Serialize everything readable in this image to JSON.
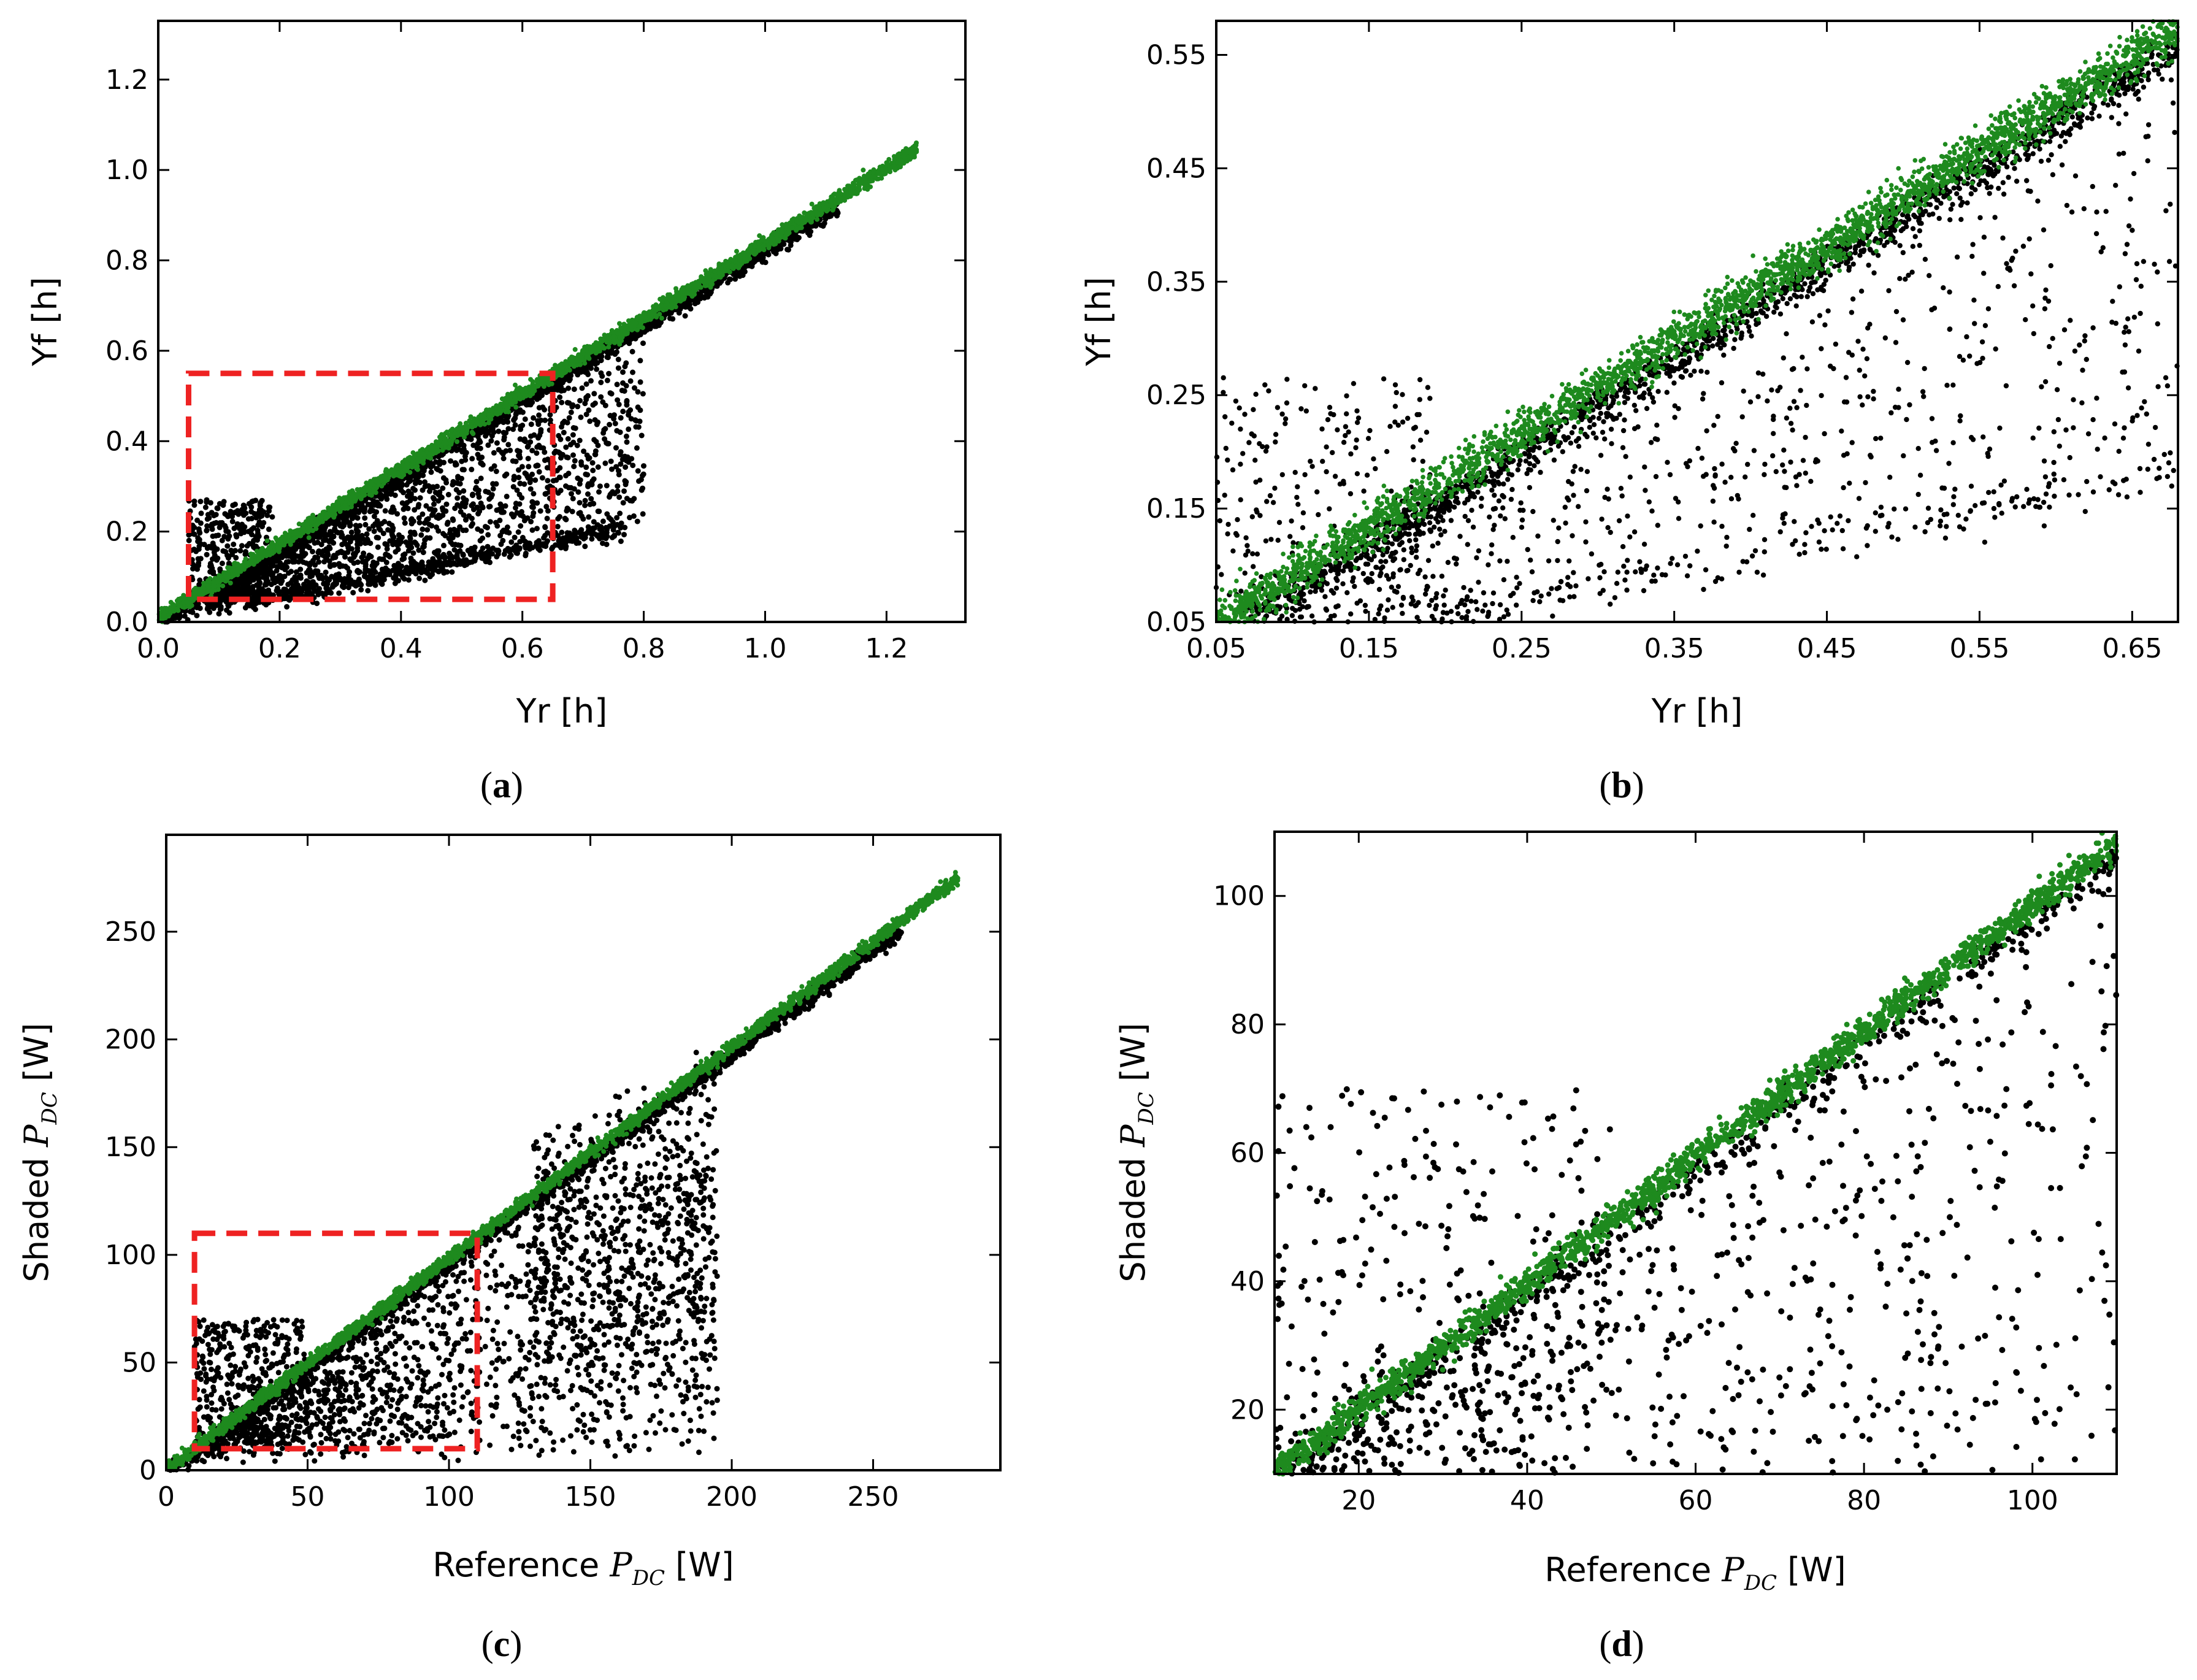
{
  "colors": {
    "shaded": "#000000",
    "reference": "#1e8a1e",
    "zoom_box": "#ee2222"
  },
  "chart_data": [
    {
      "id": "a",
      "panel_label": "a",
      "type": "scatter",
      "xlabel": "Yr [h]",
      "ylabel": "Yf [h]",
      "xlim": [
        0.0,
        1.33
      ],
      "ylim": [
        0.0,
        1.33
      ],
      "xticks": [
        0.0,
        0.2,
        0.4,
        0.6,
        0.8,
        1.0,
        1.2
      ],
      "yticks": [
        0.0,
        0.2,
        0.4,
        0.6,
        0.8,
        1.0,
        1.2
      ],
      "xtick_labels": [
        "0.0",
        "0.2",
        "0.4",
        "0.6",
        "0.8",
        "1.0",
        "1.2"
      ],
      "ytick_labels": [
        "0.0",
        "0.2",
        "0.4",
        "0.6",
        "0.8",
        "1.0",
        "1.2"
      ],
      "zoom_box": {
        "x0": 0.05,
        "x1": 0.65,
        "y0": 0.05,
        "y1": 0.55
      },
      "series": [
        {
          "name": "shaded",
          "color": "#000000",
          "description_points": "dense cloud below diagonal, upper band to ~1.2"
        },
        {
          "name": "reference",
          "color": "#1e8a1e",
          "slope": 0.83,
          "x_range": [
            0.0,
            1.25
          ]
        }
      ]
    },
    {
      "id": "b",
      "panel_label": "b",
      "type": "scatter",
      "xlabel": "Yr [h]",
      "ylabel": "Yf [h]",
      "xlim": [
        0.05,
        0.68
      ],
      "ylim": [
        0.05,
        0.58
      ],
      "xticks": [
        0.05,
        0.15,
        0.25,
        0.35,
        0.45,
        0.55,
        0.65
      ],
      "yticks": [
        0.05,
        0.15,
        0.25,
        0.35,
        0.45,
        0.55
      ],
      "xtick_labels": [
        "0.05",
        "0.15",
        "0.25",
        "0.35",
        "0.45",
        "0.55",
        "0.65"
      ],
      "ytick_labels": [
        "0.05",
        "0.15",
        "0.25",
        "0.35",
        "0.45",
        "0.55"
      ],
      "series": [
        {
          "name": "shaded",
          "color": "#000000"
        },
        {
          "name": "reference",
          "color": "#1e8a1e",
          "slope": 0.83
        }
      ]
    },
    {
      "id": "c",
      "panel_label": "c",
      "type": "scatter",
      "xlabel_prefix": "Reference ",
      "ylabel_prefix": "Shaded ",
      "label_symbol": "P",
      "label_subscript": "DC",
      "label_unit": " [W]",
      "xlim": [
        0,
        295
      ],
      "ylim": [
        0,
        295
      ],
      "xticks": [
        0,
        50,
        100,
        150,
        200,
        250
      ],
      "yticks": [
        0,
        50,
        100,
        150,
        200,
        250
      ],
      "xtick_labels": [
        "0",
        "50",
        "100",
        "150",
        "200",
        "250"
      ],
      "ytick_labels": [
        "0",
        "50",
        "100",
        "150",
        "200",
        "250"
      ],
      "zoom_box": {
        "x0": 10,
        "x1": 110,
        "y0": 10,
        "y1": 110
      },
      "series": [
        {
          "name": "shaded",
          "color": "#000000"
        },
        {
          "name": "reference",
          "color": "#1e8a1e",
          "slope": 0.97,
          "x_range": [
            0,
            280
          ]
        }
      ]
    },
    {
      "id": "d",
      "panel_label": "d",
      "type": "scatter",
      "xlabel_prefix": "Reference ",
      "ylabel_prefix": "Shaded ",
      "label_symbol": "P",
      "label_subscript": "DC",
      "label_unit": " [W]",
      "xlim": [
        10,
        110
      ],
      "ylim": [
        10,
        110
      ],
      "xticks": [
        20,
        40,
        60,
        80,
        100
      ],
      "yticks": [
        20,
        40,
        60,
        80,
        100
      ],
      "xtick_labels": [
        "20",
        "40",
        "60",
        "80",
        "100"
      ],
      "ytick_labels": [
        "20",
        "40",
        "60",
        "80",
        "100"
      ],
      "series": [
        {
          "name": "shaded",
          "color": "#000000"
        },
        {
          "name": "reference",
          "color": "#1e8a1e",
          "slope": 0.97
        }
      ]
    }
  ]
}
